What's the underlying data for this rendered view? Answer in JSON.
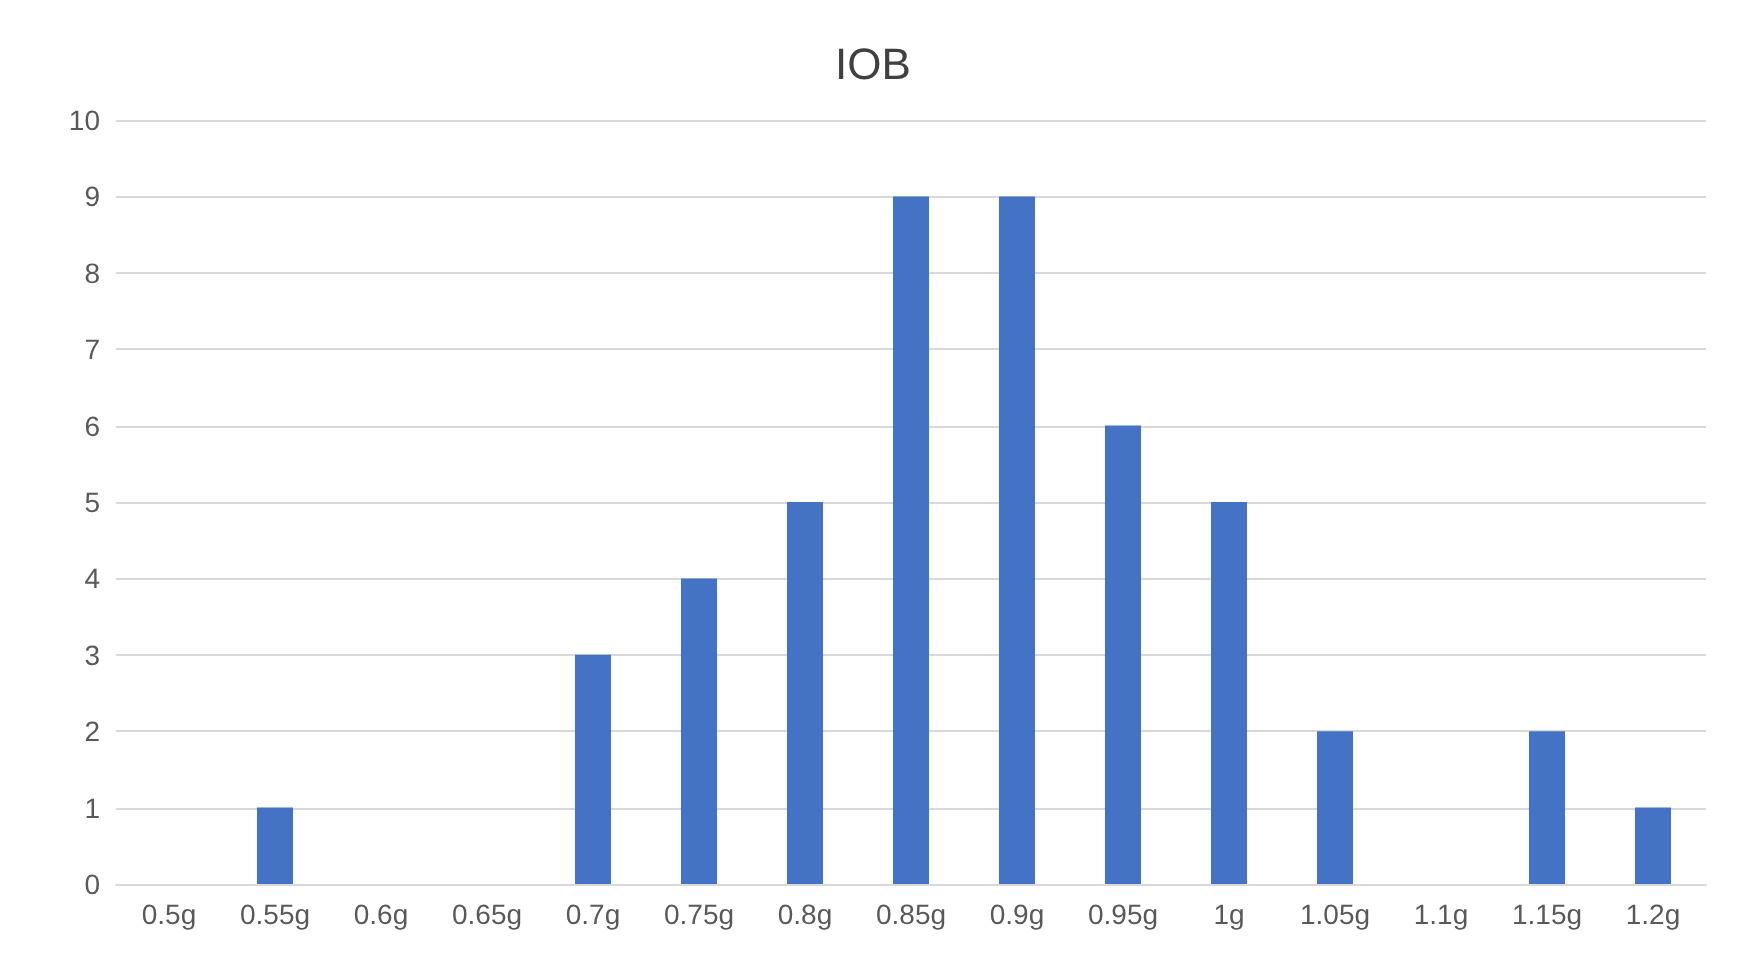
{
  "chart_data": {
    "type": "bar",
    "title": "IOB",
    "categories": [
      "0.5g",
      "0.55g",
      "0.6g",
      "0.65g",
      "0.7g",
      "0.75g",
      "0.8g",
      "0.85g",
      "0.9g",
      "0.95g",
      "1g",
      "1.05g",
      "1.1g",
      "1.15g",
      "1.2g"
    ],
    "values": [
      0,
      1,
      0,
      0,
      3,
      4,
      5,
      9,
      9,
      6,
      5,
      2,
      0,
      2,
      1
    ],
    "color": "#4472c4",
    "ylim": [
      0,
      10
    ],
    "yticks": [
      0,
      1,
      2,
      3,
      4,
      5,
      6,
      7,
      8,
      9,
      10
    ],
    "grid": "y"
  }
}
